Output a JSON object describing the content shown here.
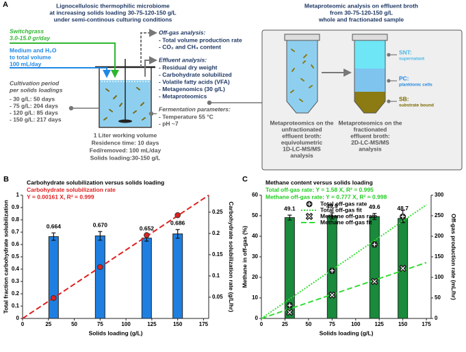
{
  "panel_a": {
    "label": "A",
    "reactor_title": [
      "Lignocellulosic thermophilic microbiome",
      "at increasing solids loading 30-75-120-150 g/L",
      "under semi-continous culturing conditions"
    ],
    "switchgrass": [
      "Switchgrass",
      "3.0-15.0 gr/day"
    ],
    "medium": [
      "Medium and H₂O",
      "to total volume",
      "100 mL/day"
    ],
    "cultivation_title": [
      "Cultivation period",
      "per solids loadings"
    ],
    "cultivation_items": [
      "- 30 g/L: 50 days",
      "- 75 g/L: 204 days",
      "- 120 g/L: 85 days",
      "- 150 g/L: 217 days"
    ],
    "reactor_info": [
      "1 Liter working volume",
      "Residence time: 10 days",
      "Fed/removed: 100 mL/day",
      "Solids loading:30-150 g/L"
    ],
    "offgas_title": "Off-gas analysis:",
    "offgas_items": [
      "- Total volume production rate",
      "- CO₂ and CH₄ content"
    ],
    "effluent_title": "Effluent analysis:",
    "effluent_items": [
      "- Residual dry weight",
      "- Carbohydrate solubilized",
      "- Volatile fatty acids (VFA)",
      "- Metagenomics (30 g/L)",
      "- Metaproteomics"
    ],
    "fermentation_title": "Fermentation parameters:",
    "fermentation_items": [
      "- Temperature 55 °C",
      "- pH ~7"
    ],
    "meta_title": [
      "Metaproteomic analysis on effluent broth",
      "from 30-75-120-150 g/L",
      "whole and fractionated sample"
    ],
    "fractions": [
      {
        "name": "SNT:",
        "desc": "supernatant",
        "color": "#4ab8e8"
      },
      {
        "name": "PC:",
        "desc": "planktonic cells",
        "color": "#1e88e5"
      },
      {
        "name": "SB:",
        "desc": "substrate bound",
        "color": "#7a6a00"
      }
    ],
    "caption_unfractionated": [
      "Metaproteomics on the",
      "unfractionated",
      "effluent broth:",
      "equivolumetric",
      "1D-LC-MS/MS",
      "analysis"
    ],
    "caption_fractionated": [
      "Metaproteomics on the",
      "fractionated",
      "effluent broth:",
      "2D-LC-MS/MS",
      "analysis"
    ]
  },
  "chart_data": [
    {
      "type": "combo",
      "panel": "B",
      "annotations": [
        {
          "text": "Carbohydrate solubilization versus solids loading",
          "color": "#000000"
        },
        {
          "text": "Carbohydrate solubilization rate",
          "color": "#e02020"
        },
        {
          "text": "Y = 0.00161 X, R² = 0.999",
          "color": "#e02020"
        }
      ],
      "x_label": "Solids loading (g/L)",
      "y_label": "Total fraction carbohydrate solubilization",
      "y2_label": "Carbohydrate solubilization rate (g/L/hr)",
      "xlim": [
        0,
        180
      ],
      "xticks": [
        0,
        25,
        50,
        75,
        100,
        125,
        150,
        175
      ],
      "ylim": [
        0,
        1
      ],
      "yticks": [
        0,
        0.1,
        0.2,
        0.3,
        0.4,
        0.5,
        0.6,
        0.7,
        0.8,
        0.9,
        1
      ],
      "y2lim": [
        0,
        0.29
      ],
      "y2ticks": [
        0.05,
        0.1,
        0.15,
        0.2,
        0.25
      ],
      "series": [
        {
          "type": "bar",
          "color": "#1e7fe0",
          "x": [
            30,
            75,
            120,
            150
          ],
          "values": [
            0.664,
            0.67,
            0.652,
            0.686
          ],
          "value_labels": [
            "0.664",
            "0.670",
            "0.652",
            "0.686"
          ],
          "errors": [
            0.03,
            0.035,
            0.025,
            0.035
          ]
        },
        {
          "type": "scatter",
          "marker": "circle",
          "color": "#e02020",
          "axis": "y2",
          "x": [
            30,
            75,
            120,
            150
          ],
          "values": [
            0.048,
            0.121,
            0.196,
            0.243
          ]
        },
        {
          "type": "line",
          "dash": "dashed",
          "color": "#e02020",
          "axis": "y2",
          "x": [
            0,
            180
          ],
          "values": [
            0,
            0.29
          ]
        }
      ]
    },
    {
      "type": "combo",
      "panel": "C",
      "annotations": [
        {
          "text": "Methane content versus solids loading",
          "color": "#000000"
        },
        {
          "text": "Total off-gas rate: Y = 1.58 X, R² = 0.995",
          "color": "#22cc22"
        },
        {
          "text": "Methane off-gas rate: Y = 0.777 X, R² = 0.998",
          "color": "#22cc22"
        }
      ],
      "x_label": "Solids loading (g/L)",
      "y_label": "Methane in off-gas (%)",
      "y2_label": "Off-gas production rate (mL/hr)",
      "xlim": [
        0,
        180
      ],
      "xticks": [
        0,
        25,
        50,
        75,
        100,
        125,
        150,
        175
      ],
      "ylim": [
        0,
        60
      ],
      "yticks": [
        0,
        10,
        20,
        30,
        40,
        50,
        60
      ],
      "y2lim": [
        0,
        300
      ],
      "y2ticks": [
        0,
        50,
        100,
        150,
        200,
        250,
        300
      ],
      "series": [
        {
          "type": "bar",
          "color": "#1a8a3c",
          "x": [
            30,
            75,
            120,
            150
          ],
          "values": [
            49.1,
            49.9,
            49.6,
            48.7
          ],
          "errors": [
            1.2,
            1.5,
            1.5,
            1.8
          ]
        },
        {
          "type": "scatter",
          "name": "Total off-gas rate",
          "marker": "plus",
          "color": "#1a1a1a",
          "axis": "y2",
          "x": [
            30,
            75,
            120,
            150
          ],
          "values": [
            32,
            116,
            180,
            248
          ],
          "errors": [
            6,
            6,
            6,
            15
          ]
        },
        {
          "type": "line",
          "name": "Total off-gas fit",
          "dash": "dotted",
          "color": "#33dd33",
          "axis": "y2",
          "x": [
            0,
            175
          ],
          "values": [
            0,
            276.5
          ]
        },
        {
          "type": "scatter",
          "name": "Methane off-gas rate",
          "marker": "x",
          "color": "#1a1a1a",
          "axis": "y2",
          "x": [
            30,
            75,
            120,
            150
          ],
          "values": [
            15,
            57,
            90,
            122
          ]
        },
        {
          "type": "line",
          "name": "Methane off-gas fit",
          "dash": "dashed",
          "color": "#33dd33",
          "axis": "y2",
          "x": [
            0,
            175
          ],
          "values": [
            0,
            136
          ]
        }
      ]
    }
  ]
}
